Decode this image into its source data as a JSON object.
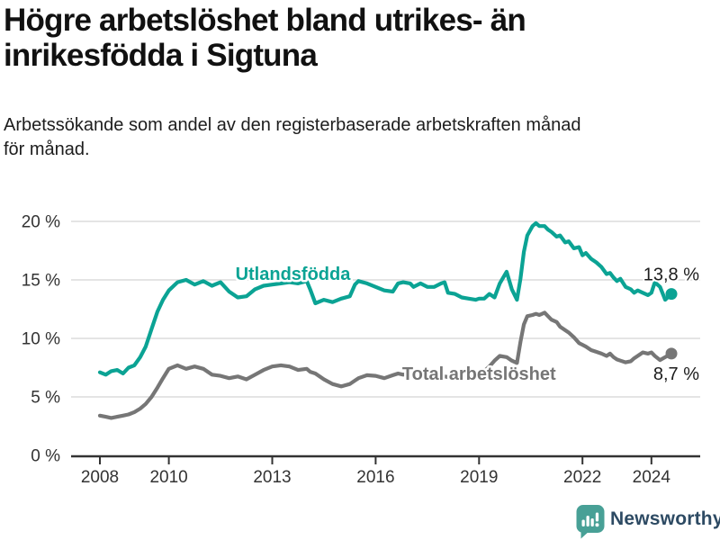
{
  "header": {
    "title_line1": "Högre arbetslöshet bland utrikes- än",
    "title_line2": "inrikesfödda i Sigtuna",
    "subtitle_line1": "Arbetssökande som andel av den registerbaserade arbetskraften månad",
    "subtitle_line2": "för månad."
  },
  "footer": {
    "brand": "Newsworthy",
    "brand_icon": "newsworthy-bar-chart-speech-bubble-icon"
  },
  "colors": {
    "utlandsfodda": "#0ba394",
    "total": "#767676",
    "grid": "#dcdcdc",
    "axis": "#333333",
    "tick_text": "#333333",
    "value_label_text": "#1d1d1d",
    "title_text": "#111111",
    "logo_teal": "#48a096",
    "logo_text": "#2d4a63"
  },
  "chart_data": {
    "type": "line",
    "title": "Högre arbetslöshet bland utrikes- än inrikesfödda i Sigtuna",
    "subtitle": "Arbetssökande som andel av den registerbaserade arbetskraften månad för månad.",
    "xlabel": "",
    "ylabel": "",
    "x_unit": "decimal_year",
    "ylim": [
      0,
      20
    ],
    "xlim": [
      2007.16,
      2025.45
    ],
    "grid": true,
    "legend": "inline-labels",
    "y_ticks": [
      {
        "value": 0,
        "label": "0 %"
      },
      {
        "value": 5,
        "label": "5 %"
      },
      {
        "value": 10,
        "label": "10 %"
      },
      {
        "value": 15,
        "label": "15 %"
      },
      {
        "value": 20,
        "label": "20 %"
      }
    ],
    "x_ticks": [
      {
        "value": 2008,
        "label": "2008"
      },
      {
        "value": 2010,
        "label": "2010"
      },
      {
        "value": 2013,
        "label": "2013"
      },
      {
        "value": 2016,
        "label": "2016"
      },
      {
        "value": 2019,
        "label": "2019"
      },
      {
        "value": 2022,
        "label": "2022"
      },
      {
        "value": 2024,
        "label": "2024"
      }
    ],
    "x": [
      2008.0,
      2008.17,
      2008.33,
      2008.5,
      2008.67,
      2008.83,
      2009.0,
      2009.17,
      2009.33,
      2009.5,
      2009.67,
      2009.83,
      2010.0,
      2010.25,
      2010.5,
      2010.75,
      2011.0,
      2011.25,
      2011.5,
      2011.75,
      2012.0,
      2012.25,
      2012.5,
      2012.75,
      2013.0,
      2013.25,
      2013.5,
      2013.75,
      2014.0,
      2014.1,
      2014.25,
      2014.5,
      2014.75,
      2015.0,
      2015.25,
      2015.4,
      2015.5,
      2015.75,
      2016.0,
      2016.25,
      2016.5,
      2016.65,
      2016.8,
      2017.0,
      2017.1,
      2017.3,
      2017.5,
      2017.7,
      2017.9,
      2018.0,
      2018.1,
      2018.3,
      2018.5,
      2018.7,
      2018.9,
      2019.0,
      2019.15,
      2019.3,
      2019.45,
      2019.6,
      2019.8,
      2019.95,
      2020.1,
      2020.2,
      2020.3,
      2020.4,
      2020.55,
      2020.65,
      2020.75,
      2020.9,
      2021.0,
      2021.1,
      2021.25,
      2021.35,
      2021.5,
      2021.6,
      2021.75,
      2021.9,
      2022.0,
      2022.1,
      2022.25,
      2022.4,
      2022.55,
      2022.7,
      2022.8,
      2022.9,
      2023.0,
      2023.1,
      2023.25,
      2023.4,
      2023.5,
      2023.6,
      2023.75,
      2023.9,
      2024.0,
      2024.1,
      2024.25,
      2024.4,
      2024.58
    ],
    "series": [
      {
        "name": "Utlandsfödda",
        "color_key": "utlandsfodda",
        "end_label": "13,8 %",
        "end_label_position": "above",
        "label_anchor": {
          "x": 2013.6,
          "y": 15.55
        },
        "values": [
          7.1,
          6.9,
          7.2,
          7.3,
          7.0,
          7.5,
          7.7,
          8.4,
          9.3,
          10.8,
          12.3,
          13.3,
          14.1,
          14.8,
          15.0,
          14.6,
          14.9,
          14.5,
          14.8,
          14.0,
          13.5,
          13.6,
          14.2,
          14.5,
          14.6,
          14.7,
          14.8,
          14.7,
          14.9,
          14.2,
          13.0,
          13.3,
          13.1,
          13.4,
          13.6,
          14.6,
          14.9,
          14.7,
          14.4,
          14.1,
          14.0,
          14.7,
          14.8,
          14.7,
          14.4,
          14.7,
          14.4,
          14.4,
          14.7,
          14.8,
          13.9,
          13.8,
          13.5,
          13.4,
          13.3,
          13.4,
          13.4,
          13.8,
          13.5,
          14.7,
          15.7,
          14.2,
          13.3,
          15.1,
          17.4,
          18.8,
          19.6,
          19.85,
          19.6,
          19.6,
          19.3,
          19.1,
          18.7,
          18.8,
          18.2,
          18.3,
          17.7,
          17.8,
          17.1,
          17.3,
          16.8,
          16.5,
          16.1,
          15.5,
          15.6,
          15.2,
          14.9,
          15.1,
          14.4,
          14.2,
          13.9,
          14.1,
          13.9,
          13.7,
          13.9,
          14.8,
          14.4,
          13.3,
          13.8
        ]
      },
      {
        "name": "Total arbetslöshet",
        "color_key": "total",
        "end_label": "8,7 %",
        "end_label_position": "below",
        "label_anchor": {
          "x": 2019.0,
          "y": 7.0
        },
        "values": [
          3.4,
          3.3,
          3.2,
          3.3,
          3.4,
          3.5,
          3.7,
          4.0,
          4.4,
          5.0,
          5.8,
          6.6,
          7.4,
          7.7,
          7.4,
          7.6,
          7.4,
          6.9,
          6.8,
          6.6,
          6.75,
          6.5,
          6.9,
          7.3,
          7.6,
          7.7,
          7.6,
          7.3,
          7.4,
          7.15,
          7.0,
          6.5,
          6.1,
          5.9,
          6.1,
          6.4,
          6.6,
          6.85,
          6.8,
          6.6,
          6.85,
          7.0,
          6.9,
          7.0,
          6.9,
          6.9,
          6.8,
          6.85,
          6.8,
          6.75,
          6.7,
          6.75,
          6.8,
          6.85,
          6.9,
          7.0,
          7.2,
          7.6,
          8.1,
          8.5,
          8.4,
          8.1,
          7.9,
          9.7,
          11.2,
          11.9,
          12.0,
          12.1,
          12.0,
          12.2,
          11.9,
          11.6,
          11.4,
          11.0,
          10.7,
          10.5,
          10.1,
          9.6,
          9.45,
          9.3,
          9.0,
          8.85,
          8.7,
          8.5,
          8.7,
          8.4,
          8.2,
          8.1,
          7.95,
          8.05,
          8.3,
          8.5,
          8.8,
          8.7,
          8.8,
          8.5,
          8.15,
          8.4,
          8.7
        ]
      }
    ]
  }
}
